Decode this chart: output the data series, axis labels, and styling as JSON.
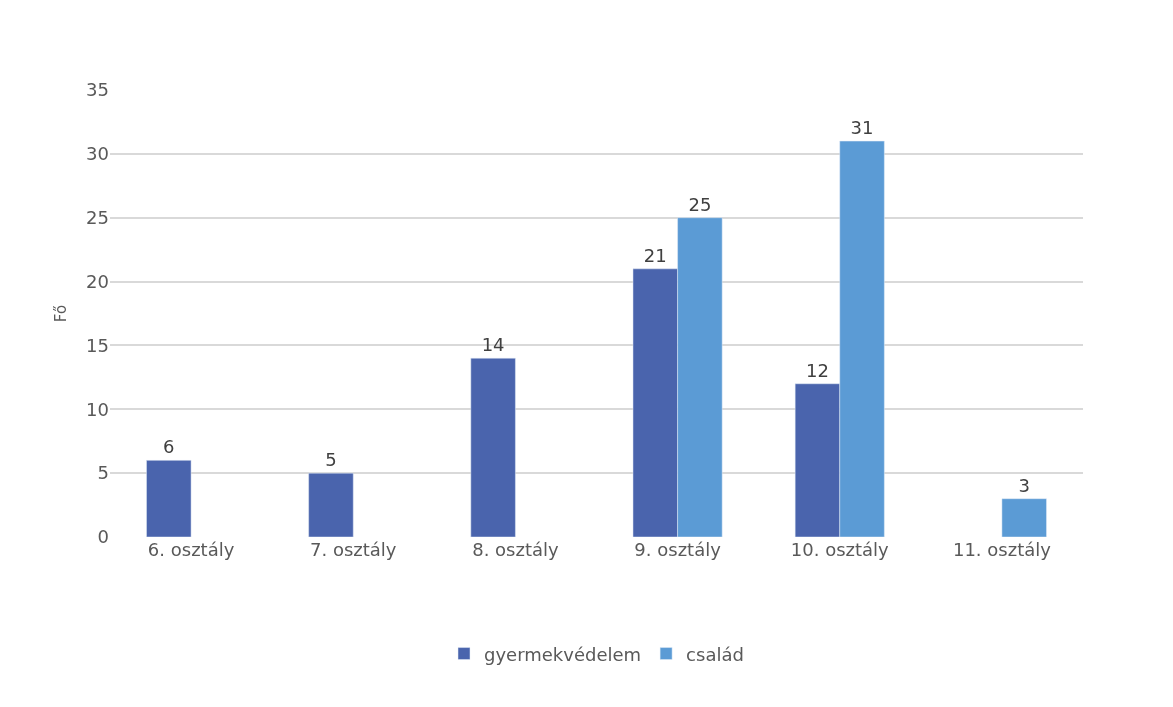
{
  "chart_data": {
    "type": "bar",
    "ylabel": "Fő",
    "categories": [
      "6. osztály",
      "7. osztály",
      "8. osztály",
      "9. osztály",
      "10. osztály",
      "11. osztály"
    ],
    "series": [
      {
        "name": "gyermekvédelem",
        "color": "#4a64ad",
        "values": [
          6,
          5,
          14,
          21,
          12,
          null
        ]
      },
      {
        "name": "család",
        "color": "#5b9bd5",
        "values": [
          null,
          null,
          null,
          25,
          31,
          3
        ]
      }
    ],
    "ylim": [
      0,
      35
    ],
    "yticks": [
      0,
      5,
      10,
      15,
      20,
      25,
      30,
      35
    ],
    "grid": "y",
    "legend": "bottom",
    "data_labels": true
  }
}
